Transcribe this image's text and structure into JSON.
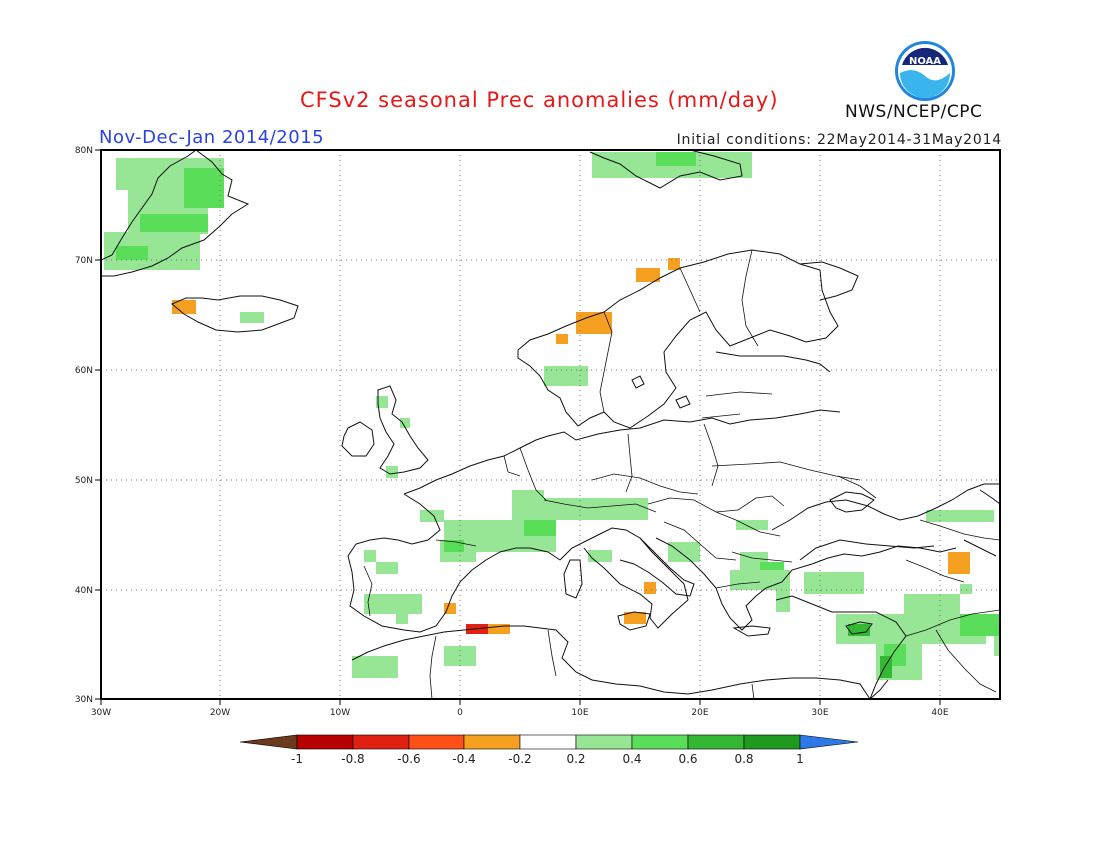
{
  "header": {
    "title": "CFSv2 seasonal Prec anomalies (mm/day)",
    "period": "Nov-Dec-Jan 2014/2015",
    "initial_conditions": "Initial conditions: 22May2014-31May2014",
    "agency": "NWS/NCEP/CPC",
    "logo_text": "NOAA"
  },
  "map": {
    "lon_ticks": [
      "30W",
      "20W",
      "10W",
      "0",
      "10E",
      "20E",
      "30E",
      "40E"
    ],
    "lat_ticks": [
      "80N",
      "70N",
      "60N",
      "50N",
      "40N",
      "30N"
    ]
  },
  "colorbar": {
    "labels": [
      "-1",
      "-0.8",
      "-0.6",
      "-0.4",
      "-0.2",
      "0.2",
      "0.4",
      "0.6",
      "0.8",
      "1"
    ],
    "colors": {
      "below_min": "#6b3a1e",
      "lt_-0.8": "#b80000",
      "-0.8_-0.6": "#e02010",
      "-0.6_-0.4": "#ff5018",
      "-0.4_-0.2": "#f5a020",
      "-0.2_0.2": "#ffffff",
      "0.2_0.4": "#96e696",
      "0.4_0.6": "#5ade5a",
      "0.6_0.8": "#34b834",
      "0.8_1": "#1e9a1e",
      "above_max": "#2f78e8"
    }
  }
}
